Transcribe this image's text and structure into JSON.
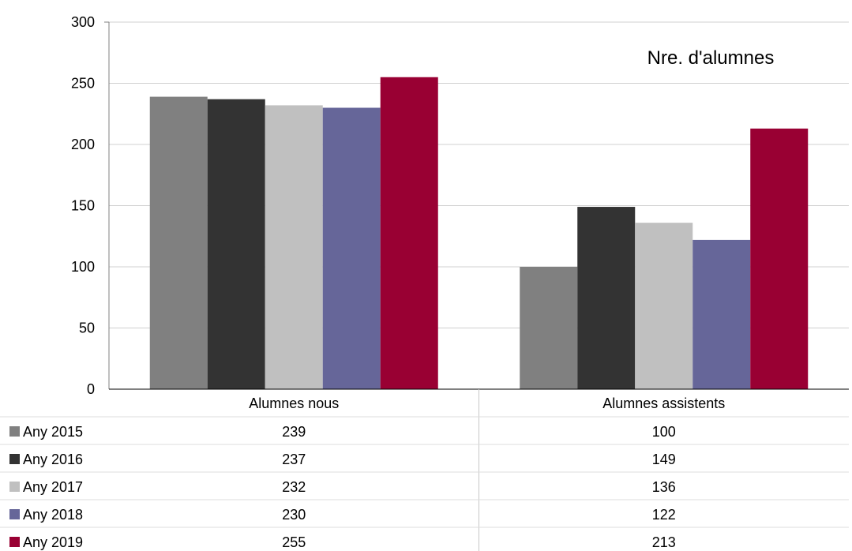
{
  "chart_data": {
    "type": "bar",
    "title": "Nre. d'alumnes",
    "categories": [
      "Alumnes nous",
      "Alumnes assistents"
    ],
    "series": [
      {
        "name": "Any 2015",
        "values": [
          239,
          100
        ],
        "color": "#808080"
      },
      {
        "name": "Any 2016",
        "values": [
          237,
          149
        ],
        "color": "#333333"
      },
      {
        "name": "Any 2017",
        "values": [
          232,
          136
        ],
        "color": "#c0c0c0"
      },
      {
        "name": "Any 2018",
        "values": [
          230,
          122
        ],
        "color": "#666699"
      },
      {
        "name": "Any 2019",
        "values": [
          255,
          213
        ],
        "color": "#990033"
      }
    ],
    "ylim": [
      0,
      300
    ],
    "yticks": [
      0,
      50,
      100,
      150,
      200,
      250,
      300
    ],
    "grid": true,
    "legend": "data-table-left",
    "data_table": true
  }
}
